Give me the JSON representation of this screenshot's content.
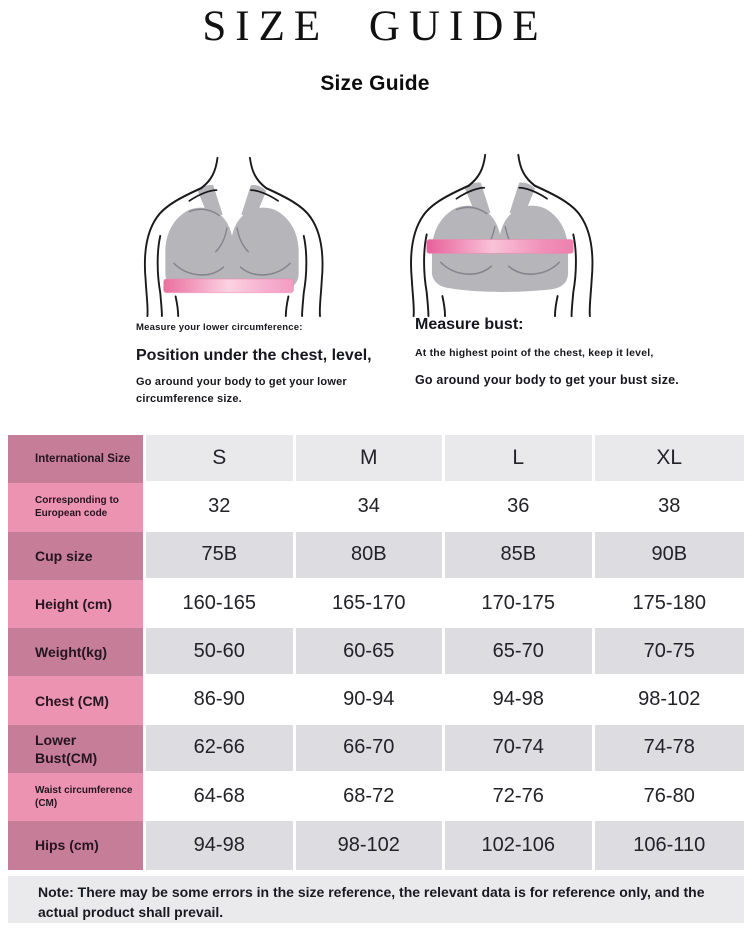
{
  "page": {
    "title": "SIZE GUIDE",
    "subtitle": "Size Guide"
  },
  "measure_guides": {
    "lower_circumference": {
      "icon": "bra-underband-measure-illustration",
      "intro": "Measure your lower circumference:",
      "heading": "Position under the chest, level,",
      "detail": "Go around your body to get your lower circumference size."
    },
    "bust": {
      "icon": "bra-bust-measure-illustration",
      "heading": "Measure bust:",
      "intro": "At the highest point of the chest, keep it level,",
      "detail": "Go around your body to get your bust size."
    }
  },
  "size_table": {
    "rows": [
      {
        "label": "International Size",
        "values": [
          "S",
          "M",
          "L",
          "XL"
        ]
      },
      {
        "label": "Corresponding to European code",
        "values": [
          "32",
          "34",
          "36",
          "38"
        ]
      },
      {
        "label": "Cup size",
        "values": [
          "75B",
          "80B",
          "85B",
          "90B"
        ]
      },
      {
        "label": "Height (cm)",
        "values": [
          "160-165",
          "165-170",
          "170-175",
          "175-180"
        ]
      },
      {
        "label": "Weight(kg)",
        "values": [
          "50-60",
          "60-65",
          "65-70",
          "70-75"
        ]
      },
      {
        "label": "Chest (CM)",
        "values": [
          "86-90",
          "90-94",
          "94-98",
          "98-102"
        ]
      },
      {
        "label": "Lower Bust(CM)",
        "values": [
          "62-66",
          "66-70",
          "70-74",
          "74-78"
        ]
      },
      {
        "label": "Waist circumference (CM)",
        "values": [
          "64-68",
          "68-72",
          "72-76",
          "76-80"
        ]
      },
      {
        "label": "Hips (cm)",
        "values": [
          "94-98",
          "98-102",
          "102-106",
          "106-110"
        ]
      }
    ]
  },
  "note": {
    "text": "Note: There may be some errors in the size reference, the relevant data is for reference only, and the actual product shall prevail."
  },
  "colors": {
    "label_dark_pink": "#c67d97",
    "label_light_pink": "#eb93b0",
    "header_row_gray": "#e9e9ec",
    "data_row_gray": "#dcdce1",
    "note_background": "#eaeaed",
    "measure_band_pink": "#f08fb8",
    "bra_gray": "#b5b5ba"
  }
}
